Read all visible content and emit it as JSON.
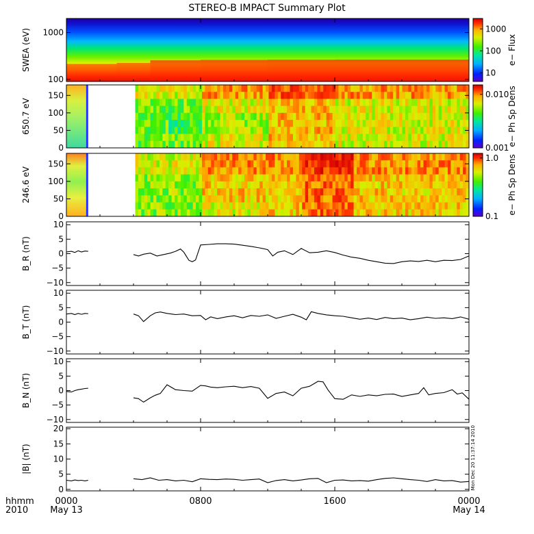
{
  "title": "STEREO-B IMPACT Summary Plot",
  "timestamp": "Mon Dec 20 11:37:14 2010",
  "time_axis": {
    "row1": [
      "hhmm",
      "0000",
      "0800",
      "1600",
      "0000"
    ],
    "row2": [
      "2010",
      "May 13",
      "",
      "",
      "May 14"
    ]
  },
  "colorscale": [
    "#5a00d0",
    "#0022ff",
    "#00b0ff",
    "#00e8a0",
    "#40f000",
    "#d8f000",
    "#ffb000",
    "#ff3000",
    "#d00000"
  ],
  "chart_data": [
    {
      "type": "heatmap",
      "ylabel": "SWEA (eV)",
      "ylog": true,
      "ylim": [
        90,
        2000
      ],
      "yticks": [
        100,
        1000
      ],
      "yticklabels": [
        "100",
        "1000"
      ],
      "colorbar": {
        "label": "e− Flux",
        "log": true,
        "range": [
          4,
          3000
        ],
        "ticks": [
          10,
          100,
          1000
        ],
        "ticklabels": [
          "10",
          "100",
          "1000"
        ]
      },
      "description_levels": {
        "hours": [
          0,
          3,
          5,
          8,
          12,
          16,
          20,
          24
        ],
        "flux_at_100eV": [
          300,
          500,
          2000,
          2500,
          2800,
          3000,
          3000,
          3000
        ]
      }
    },
    {
      "type": "heatmap",
      "ylabel": "650.7 eV",
      "ylim": [
        0,
        180
      ],
      "yticks": [
        0,
        50,
        100,
        150
      ],
      "yticklabels": [
        "0",
        "50",
        "100",
        "150"
      ],
      "data_gaps_hours": [
        [
          1.3,
          4.1
        ]
      ],
      "colorbar": {
        "label": "e− Ph Sp Dens",
        "log": true,
        "range": [
          0.001,
          0.015
        ],
        "ticks": [
          0.001,
          0.01
        ],
        "ticklabels": [
          "0.001",
          "0.010"
        ]
      }
    },
    {
      "type": "heatmap",
      "ylabel": "246.6 eV",
      "ylim": [
        0,
        180
      ],
      "yticks": [
        0,
        50,
        100,
        150
      ],
      "yticklabels": [
        "0",
        "50",
        "100",
        "150"
      ],
      "data_gaps_hours": [
        [
          1.3,
          4.1
        ]
      ],
      "colorbar": {
        "label": "e− Ph Sp Dens",
        "log": true,
        "range": [
          0.1,
          1.2
        ],
        "ticks": [
          0.1,
          1.0
        ],
        "ticklabels": [
          "0.1",
          "1.0"
        ]
      }
    },
    {
      "type": "line",
      "ylabel": "B_R (nT)",
      "ylim": [
        -11,
        11
      ],
      "yticks": [
        -10,
        -5,
        0,
        5,
        10
      ],
      "yticklabels": [
        "−10",
        "−5",
        "0",
        "5",
        "10"
      ],
      "segments": [
        {
          "x": [
            0.0,
            0.3,
            0.5,
            0.7,
            0.9,
            1.1,
            1.3
          ],
          "y": [
            0.6,
            0.8,
            0.4,
            1.0,
            0.6,
            0.9,
            0.8
          ]
        },
        {
          "x": [
            4.0,
            4.3,
            4.6,
            5.0,
            5.4,
            5.8,
            6.2,
            6.5,
            6.8,
            7.0,
            7.3,
            7.5,
            7.7,
            8.0,
            8.5,
            9.0,
            9.5,
            10.0,
            10.5,
            11.0,
            11.5,
            12.0,
            12.3,
            12.6,
            13.0,
            13.5,
            14.0,
            14.5,
            15.0,
            15.5,
            16.0,
            16.5,
            17.0,
            17.5,
            18.0,
            18.5,
            19.0,
            19.5,
            20.0,
            20.5,
            21.0,
            21.5,
            22.0,
            22.5,
            23.0,
            23.5,
            24.0
          ],
          "y": [
            -0.3,
            -0.8,
            -0.2,
            0.2,
            -0.8,
            -0.3,
            0.2,
            0.8,
            1.6,
            0.5,
            -2.3,
            -2.8,
            -2.2,
            3.0,
            3.2,
            3.4,
            3.4,
            3.3,
            2.9,
            2.5,
            2.0,
            1.4,
            -0.8,
            0.5,
            1.0,
            -0.3,
            1.8,
            0.3,
            0.5,
            1.0,
            0.4,
            -0.5,
            -1.2,
            -1.6,
            -2.3,
            -2.8,
            -3.3,
            -3.4,
            -2.8,
            -2.5,
            -2.7,
            -2.3,
            -2.8,
            -2.3,
            -2.4,
            -2.0,
            -0.8
          ]
        }
      ]
    },
    {
      "type": "line",
      "ylabel": "B_T (nT)",
      "ylim": [
        -11,
        11
      ],
      "yticks": [
        -10,
        -5,
        0,
        5,
        10
      ],
      "yticklabels": [
        "−10",
        "−5",
        "0",
        "5",
        "10"
      ],
      "segments": [
        {
          "x": [
            0.0,
            0.3,
            0.5,
            0.7,
            0.9,
            1.1,
            1.3
          ],
          "y": [
            2.8,
            3.0,
            2.6,
            3.0,
            2.7,
            3.0,
            2.9
          ]
        },
        {
          "x": [
            4.0,
            4.3,
            4.6,
            5.0,
            5.3,
            5.6,
            6.0,
            6.5,
            7.0,
            7.5,
            8.0,
            8.3,
            8.6,
            9.0,
            9.5,
            10.0,
            10.5,
            11.0,
            11.5,
            12.0,
            12.5,
            13.0,
            13.5,
            14.0,
            14.3,
            14.6,
            15.0,
            15.5,
            16.0,
            16.5,
            17.0,
            17.5,
            18.0,
            18.5,
            19.0,
            19.5,
            20.0,
            20.5,
            21.0,
            21.5,
            22.0,
            22.5,
            23.0,
            23.5,
            24.0
          ],
          "y": [
            2.8,
            2.2,
            0.2,
            2.2,
            3.2,
            3.5,
            3.0,
            2.6,
            2.8,
            2.2,
            2.3,
            0.8,
            1.8,
            1.2,
            1.8,
            2.2,
            1.5,
            2.3,
            2.0,
            2.5,
            1.3,
            2.0,
            2.7,
            1.7,
            0.8,
            3.6,
            3.0,
            2.5,
            2.2,
            2.0,
            1.5,
            1.0,
            1.4,
            0.9,
            1.6,
            1.2,
            1.4,
            0.8,
            1.2,
            1.7,
            1.3,
            1.5,
            1.2,
            1.8,
            1.0
          ]
        }
      ]
    },
    {
      "type": "line",
      "ylabel": "B_N (nT)",
      "ylim": [
        -11,
        11
      ],
      "yticks": [
        -10,
        -5,
        0,
        5,
        10
      ],
      "yticklabels": [
        "−10",
        "−5",
        "0",
        "5",
        "10"
      ],
      "segments": [
        {
          "x": [
            0.0,
            0.3,
            0.5,
            0.7,
            0.9,
            1.1,
            1.3
          ],
          "y": [
            -0.3,
            -0.5,
            0.0,
            0.3,
            0.5,
            0.7,
            0.8
          ]
        },
        {
          "x": [
            4.0,
            4.3,
            4.6,
            5.0,
            5.3,
            5.6,
            6.0,
            6.5,
            7.0,
            7.5,
            8.0,
            8.3,
            8.6,
            9.0,
            9.5,
            10.0,
            10.5,
            11.0,
            11.5,
            12.0,
            12.5,
            13.0,
            13.5,
            14.0,
            14.5,
            15.0,
            15.3,
            15.6,
            16.0,
            16.5,
            17.0,
            17.5,
            18.0,
            18.5,
            19.0,
            19.5,
            20.0,
            20.5,
            21.0,
            21.3,
            21.6,
            22.0,
            22.5,
            23.0,
            23.3,
            23.6,
            24.0
          ],
          "y": [
            -2.5,
            -2.8,
            -4.0,
            -2.5,
            -1.6,
            -1.0,
            2.0,
            0.3,
            0.0,
            -0.2,
            1.8,
            1.6,
            1.2,
            1.0,
            1.3,
            1.5,
            1.0,
            1.4,
            0.8,
            -2.7,
            -1.0,
            -0.5,
            -1.8,
            0.8,
            1.5,
            3.2,
            3.0,
            0.2,
            -2.8,
            -3.0,
            -1.5,
            -2.0,
            -1.5,
            -1.8,
            -1.3,
            -1.2,
            -2.0,
            -1.5,
            -1.0,
            1.0,
            -1.5,
            -1.0,
            -0.7,
            0.3,
            -1.2,
            -0.8,
            -3.0
          ]
        }
      ]
    },
    {
      "type": "line",
      "ylabel": "|B| (nT)",
      "ylim": [
        -0.5,
        20.5
      ],
      "yticks": [
        0,
        5,
        10,
        15,
        20
      ],
      "yticklabels": [
        "0",
        "5",
        "10",
        "15",
        "20"
      ],
      "segments": [
        {
          "x": [
            0.0,
            0.3,
            0.5,
            0.7,
            0.9,
            1.1,
            1.3
          ],
          "y": [
            3.0,
            2.8,
            3.1,
            2.9,
            3.0,
            2.8,
            3.0
          ]
        },
        {
          "x": [
            4.0,
            4.5,
            5.0,
            5.5,
            6.0,
            6.5,
            7.0,
            7.5,
            8.0,
            8.5,
            9.0,
            9.5,
            10.0,
            10.5,
            11.0,
            11.5,
            12.0,
            12.5,
            13.0,
            13.5,
            14.0,
            14.5,
            15.0,
            15.5,
            16.0,
            16.5,
            17.0,
            17.5,
            18.0,
            18.5,
            19.0,
            19.5,
            20.0,
            20.5,
            21.0,
            21.5,
            22.0,
            22.5,
            23.0,
            23.5,
            24.0
          ],
          "y": [
            3.5,
            3.2,
            3.8,
            3.0,
            3.2,
            2.8,
            3.0,
            2.5,
            3.5,
            3.3,
            3.2,
            3.4,
            3.3,
            3.0,
            3.2,
            3.4,
            2.2,
            2.9,
            3.2,
            2.8,
            3.1,
            3.5,
            3.6,
            2.2,
            3.0,
            3.1,
            2.8,
            2.9,
            2.7,
            3.2,
            3.6,
            3.8,
            3.5,
            3.2,
            3.0,
            2.6,
            3.2,
            2.8,
            2.9,
            2.4,
            2.6
          ]
        }
      ]
    }
  ]
}
